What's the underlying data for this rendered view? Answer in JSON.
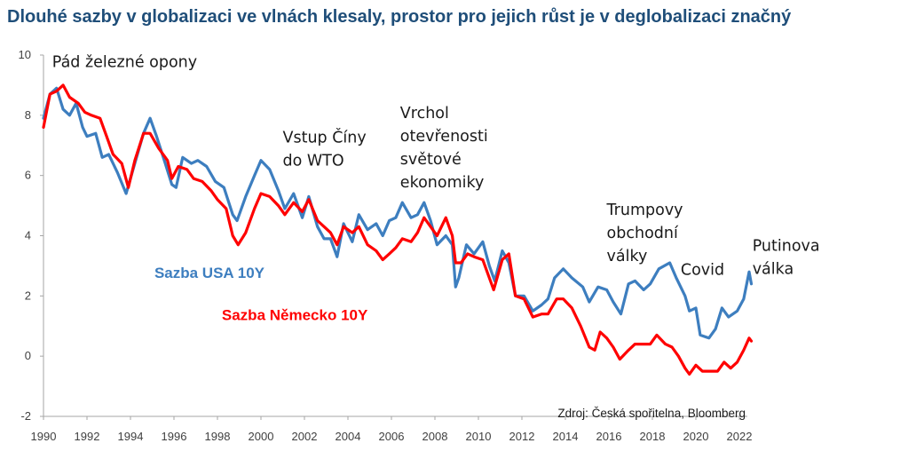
{
  "chart_data": {
    "type": "line",
    "title": "Dlouhé sazby v globalizaci ve vlnách klesaly, prostor pro jejich růst je v deglobalizaci značný",
    "xlabel": "",
    "ylabel": "",
    "xlim": [
      1990,
      2023.2
    ],
    "ylim": [
      -2,
      10
    ],
    "x_ticks": [
      "1990",
      "1992",
      "1994",
      "1996",
      "1998",
      "2000",
      "2002",
      "2004",
      "2006",
      "2008",
      "2010",
      "2012",
      "2014",
      "2016",
      "2018",
      "2020",
      "2022"
    ],
    "y_ticks": [
      "10",
      "8",
      "6",
      "4",
      "2",
      "0",
      "-2"
    ],
    "grid": false,
    "legend": "inline",
    "series": [
      {
        "name": "Sazba USA 10Y",
        "color": "#3d7ebf",
        "points": [
          [
            1990.0,
            7.9
          ],
          [
            1990.3,
            8.7
          ],
          [
            1990.6,
            8.9
          ],
          [
            1990.9,
            8.2
          ],
          [
            1991.2,
            8.0
          ],
          [
            1991.5,
            8.4
          ],
          [
            1991.8,
            7.6
          ],
          [
            1992.0,
            7.3
          ],
          [
            1992.4,
            7.4
          ],
          [
            1992.7,
            6.6
          ],
          [
            1993.0,
            6.7
          ],
          [
            1993.4,
            6.1
          ],
          [
            1993.8,
            5.4
          ],
          [
            1994.2,
            6.4
          ],
          [
            1994.6,
            7.4
          ],
          [
            1994.9,
            7.9
          ],
          [
            1995.2,
            7.3
          ],
          [
            1995.6,
            6.4
          ],
          [
            1995.9,
            5.7
          ],
          [
            1996.1,
            5.6
          ],
          [
            1996.4,
            6.6
          ],
          [
            1996.8,
            6.4
          ],
          [
            1997.1,
            6.5
          ],
          [
            1997.5,
            6.3
          ],
          [
            1997.9,
            5.8
          ],
          [
            1998.3,
            5.6
          ],
          [
            1998.7,
            4.7
          ],
          [
            1998.9,
            4.5
          ],
          [
            1999.3,
            5.3
          ],
          [
            1999.7,
            6.0
          ],
          [
            2000.0,
            6.5
          ],
          [
            2000.4,
            6.2
          ],
          [
            2000.8,
            5.5
          ],
          [
            2001.1,
            4.9
          ],
          [
            2001.5,
            5.4
          ],
          [
            2001.9,
            4.6
          ],
          [
            2002.2,
            5.3
          ],
          [
            2002.6,
            4.3
          ],
          [
            2002.9,
            3.9
          ],
          [
            2003.2,
            3.9
          ],
          [
            2003.5,
            3.3
          ],
          [
            2003.8,
            4.4
          ],
          [
            2004.2,
            3.8
          ],
          [
            2004.5,
            4.7
          ],
          [
            2004.9,
            4.2
          ],
          [
            2005.3,
            4.4
          ],
          [
            2005.6,
            4.0
          ],
          [
            2005.9,
            4.5
          ],
          [
            2006.2,
            4.6
          ],
          [
            2006.5,
            5.1
          ],
          [
            2006.9,
            4.6
          ],
          [
            2007.2,
            4.7
          ],
          [
            2007.5,
            5.1
          ],
          [
            2007.8,
            4.5
          ],
          [
            2008.1,
            3.7
          ],
          [
            2008.5,
            4.0
          ],
          [
            2008.8,
            3.7
          ],
          [
            2008.95,
            2.3
          ],
          [
            2009.1,
            2.6
          ],
          [
            2009.45,
            3.7
          ],
          [
            2009.8,
            3.4
          ],
          [
            2010.2,
            3.8
          ],
          [
            2010.5,
            3.0
          ],
          [
            2010.75,
            2.5
          ],
          [
            2011.1,
            3.5
          ],
          [
            2011.4,
            3.1
          ],
          [
            2011.7,
            2.0
          ],
          [
            2012.1,
            2.0
          ],
          [
            2012.5,
            1.5
          ],
          [
            2012.9,
            1.7
          ],
          [
            2013.2,
            1.9
          ],
          [
            2013.5,
            2.6
          ],
          [
            2013.9,
            2.9
          ],
          [
            2014.3,
            2.6
          ],
          [
            2014.8,
            2.3
          ],
          [
            2015.1,
            1.8
          ],
          [
            2015.5,
            2.3
          ],
          [
            2015.9,
            2.2
          ],
          [
            2016.2,
            1.8
          ],
          [
            2016.55,
            1.4
          ],
          [
            2016.9,
            2.4
          ],
          [
            2017.2,
            2.5
          ],
          [
            2017.6,
            2.2
          ],
          [
            2017.9,
            2.4
          ],
          [
            2018.3,
            2.9
          ],
          [
            2018.8,
            3.1
          ],
          [
            2019.1,
            2.6
          ],
          [
            2019.5,
            2.0
          ],
          [
            2019.7,
            1.5
          ],
          [
            2020.0,
            1.6
          ],
          [
            2020.2,
            0.7
          ],
          [
            2020.6,
            0.6
          ],
          [
            2020.9,
            0.9
          ],
          [
            2021.2,
            1.6
          ],
          [
            2021.5,
            1.3
          ],
          [
            2021.9,
            1.5
          ],
          [
            2022.2,
            1.9
          ],
          [
            2022.45,
            2.8
          ],
          [
            2022.55,
            2.4
          ]
        ]
      },
      {
        "name": "Sazba Německo 10Y",
        "color": "#ff0000",
        "points": [
          [
            1990.0,
            7.6
          ],
          [
            1990.3,
            8.7
          ],
          [
            1990.6,
            8.8
          ],
          [
            1990.9,
            9.0
          ],
          [
            1991.2,
            8.6
          ],
          [
            1991.6,
            8.4
          ],
          [
            1991.9,
            8.1
          ],
          [
            1992.2,
            8.0
          ],
          [
            1992.6,
            7.9
          ],
          [
            1992.9,
            7.3
          ],
          [
            1993.2,
            6.7
          ],
          [
            1993.6,
            6.4
          ],
          [
            1993.9,
            5.6
          ],
          [
            1994.2,
            6.5
          ],
          [
            1994.6,
            7.4
          ],
          [
            1994.9,
            7.4
          ],
          [
            1995.3,
            6.9
          ],
          [
            1995.7,
            6.5
          ],
          [
            1995.9,
            5.9
          ],
          [
            1996.2,
            6.3
          ],
          [
            1996.6,
            6.2
          ],
          [
            1996.9,
            5.9
          ],
          [
            1997.3,
            5.8
          ],
          [
            1997.7,
            5.5
          ],
          [
            1998.0,
            5.2
          ],
          [
            1998.4,
            4.9
          ],
          [
            1998.7,
            4.0
          ],
          [
            1998.95,
            3.7
          ],
          [
            1999.3,
            4.1
          ],
          [
            1999.7,
            4.9
          ],
          [
            2000.0,
            5.4
          ],
          [
            2000.4,
            5.3
          ],
          [
            2000.8,
            5.0
          ],
          [
            2001.1,
            4.7
          ],
          [
            2001.5,
            5.1
          ],
          [
            2001.9,
            4.8
          ],
          [
            2002.2,
            5.2
          ],
          [
            2002.6,
            4.5
          ],
          [
            2002.9,
            4.3
          ],
          [
            2003.2,
            4.1
          ],
          [
            2003.5,
            3.7
          ],
          [
            2003.8,
            4.3
          ],
          [
            2004.2,
            4.1
          ],
          [
            2004.5,
            4.3
          ],
          [
            2004.9,
            3.7
          ],
          [
            2005.3,
            3.5
          ],
          [
            2005.6,
            3.2
          ],
          [
            2005.9,
            3.4
          ],
          [
            2006.2,
            3.6
          ],
          [
            2006.5,
            3.9
          ],
          [
            2006.9,
            3.8
          ],
          [
            2007.2,
            4.1
          ],
          [
            2007.5,
            4.6
          ],
          [
            2007.8,
            4.3
          ],
          [
            2008.1,
            4.0
          ],
          [
            2008.5,
            4.6
          ],
          [
            2008.8,
            4.0
          ],
          [
            2008.95,
            3.1
          ],
          [
            2009.2,
            3.1
          ],
          [
            2009.5,
            3.4
          ],
          [
            2009.8,
            3.3
          ],
          [
            2010.2,
            3.2
          ],
          [
            2010.5,
            2.6
          ],
          [
            2010.7,
            2.2
          ],
          [
            2011.1,
            3.2
          ],
          [
            2011.4,
            3.4
          ],
          [
            2011.7,
            2.0
          ],
          [
            2012.1,
            1.9
          ],
          [
            2012.5,
            1.3
          ],
          [
            2012.9,
            1.4
          ],
          [
            2013.2,
            1.4
          ],
          [
            2013.6,
            1.9
          ],
          [
            2013.9,
            1.9
          ],
          [
            2014.3,
            1.6
          ],
          [
            2014.7,
            1.0
          ],
          [
            2015.1,
            0.3
          ],
          [
            2015.35,
            0.2
          ],
          [
            2015.6,
            0.8
          ],
          [
            2015.9,
            0.6
          ],
          [
            2016.2,
            0.3
          ],
          [
            2016.5,
            -0.1
          ],
          [
            2016.9,
            0.2
          ],
          [
            2017.2,
            0.4
          ],
          [
            2017.6,
            0.4
          ],
          [
            2017.9,
            0.4
          ],
          [
            2018.2,
            0.7
          ],
          [
            2018.6,
            0.4
          ],
          [
            2018.9,
            0.3
          ],
          [
            2019.2,
            0.0
          ],
          [
            2019.5,
            -0.4
          ],
          [
            2019.7,
            -0.6
          ],
          [
            2020.0,
            -0.3
          ],
          [
            2020.3,
            -0.5
          ],
          [
            2020.7,
            -0.5
          ],
          [
            2021.0,
            -0.5
          ],
          [
            2021.3,
            -0.2
          ],
          [
            2021.6,
            -0.4
          ],
          [
            2021.9,
            -0.2
          ],
          [
            2022.2,
            0.2
          ],
          [
            2022.45,
            0.6
          ],
          [
            2022.55,
            0.5
          ]
        ]
      }
    ],
    "annotations": [
      {
        "lines": [
          "Pád železné opony"
        ],
        "x": 1990.4,
        "y": 9.6
      },
      {
        "lines": [
          "Vstup Číny",
          "do WTO"
        ],
        "x": 2001.0,
        "y": 7.1
      },
      {
        "lines": [
          "Vrchol",
          "otevřenosti",
          "světové",
          "ekonomiky"
        ],
        "x": 2006.4,
        "y": 7.9
      },
      {
        "lines": [
          "Trumpovy",
          "obchodní",
          "války"
        ],
        "x": 2015.9,
        "y": 4.7
      },
      {
        "lines": [
          "Covid"
        ],
        "x": 2019.3,
        "y": 2.7
      },
      {
        "lines": [
          "Putinova",
          "válka"
        ],
        "x": 2022.6,
        "y": 3.5
      }
    ],
    "series_labels": [
      {
        "text": "Sazba USA 10Y",
        "x": 1995.1,
        "y": 2.6
      },
      {
        "text": "Sazba Německo 10Y",
        "x": 1998.2,
        "y": 1.2
      }
    ],
    "source": "Zdroj: Česká spořitelna, Bloomberg"
  }
}
